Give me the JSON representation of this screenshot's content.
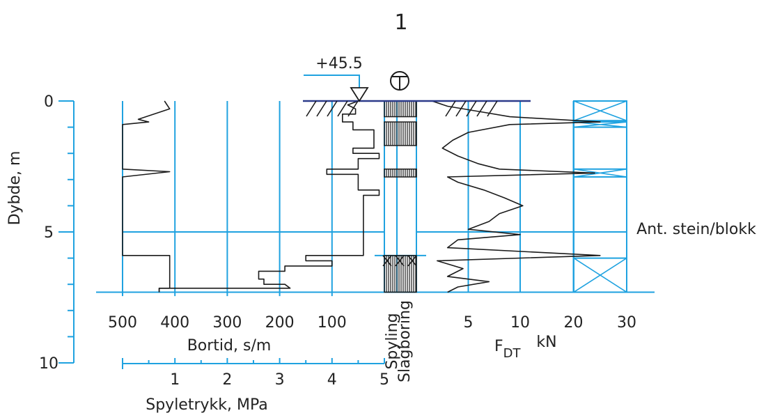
{
  "title": "1",
  "elevation_label": "+45.5",
  "right_label": "Ant. stein/blokk",
  "colors": {
    "grid": "#1fa2e0",
    "curve": "#1b1b1b"
  },
  "chart_data": {
    "type": "line",
    "depth_axis": {
      "label": "Dybde, m",
      "ticks": [
        {
          "value": 0,
          "label": "0"
        },
        {
          "value": 5,
          "label": "5"
        },
        {
          "value": 10,
          "label": "10"
        }
      ],
      "ylim": [
        0,
        10
      ],
      "inverted": true,
      "terminated_at": 7.3
    },
    "bortid": {
      "label": "Bortid, s/m",
      "ticks": [
        "500",
        "400",
        "300",
        "200",
        "100"
      ],
      "tick_values": [
        500,
        400,
        300,
        200,
        100
      ],
      "xlim": [
        500,
        0
      ],
      "profile": [
        {
          "depth": 0.0,
          "value": 50
        },
        {
          "depth": 0.15,
          "value": 70
        },
        {
          "depth": 0.3,
          "value": 55
        },
        {
          "depth": 0.5,
          "value": 55
        },
        {
          "depth": 0.5,
          "value": 80
        },
        {
          "depth": 0.8,
          "value": 80
        },
        {
          "depth": 0.8,
          "value": 60
        },
        {
          "depth": 1.1,
          "value": 60
        },
        {
          "depth": 1.1,
          "value": 20
        },
        {
          "depth": 1.8,
          "value": 20
        },
        {
          "depth": 1.8,
          "value": 60
        },
        {
          "depth": 2.0,
          "value": 60
        },
        {
          "depth": 2.0,
          "value": 10
        },
        {
          "depth": 2.2,
          "value": 10
        },
        {
          "depth": 2.2,
          "value": 50
        },
        {
          "depth": 2.6,
          "value": 50
        },
        {
          "depth": 2.6,
          "value": 110
        },
        {
          "depth": 2.8,
          "value": 110
        },
        {
          "depth": 2.8,
          "value": 50
        },
        {
          "depth": 3.4,
          "value": 50
        },
        {
          "depth": 3.4,
          "value": 10
        },
        {
          "depth": 3.6,
          "value": 10
        },
        {
          "depth": 3.6,
          "value": 40
        },
        {
          "depth": 5.9,
          "value": 40
        },
        {
          "depth": 5.9,
          "value": 150
        },
        {
          "depth": 6.1,
          "value": 150
        },
        {
          "depth": 6.1,
          "value": 100
        },
        {
          "depth": 6.3,
          "value": 100
        },
        {
          "depth": 6.3,
          "value": 190
        },
        {
          "depth": 6.5,
          "value": 190
        },
        {
          "depth": 6.5,
          "value": 240
        },
        {
          "depth": 6.8,
          "value": 240
        },
        {
          "depth": 6.8,
          "value": 230
        },
        {
          "depth": 7.0,
          "value": 230
        },
        {
          "depth": 7.0,
          "value": 190
        },
        {
          "depth": 7.15,
          "value": 180
        },
        {
          "depth": 7.15,
          "value": 430
        },
        {
          "depth": 7.3,
          "value": 430
        }
      ]
    },
    "spyletrykk": {
      "label": "Spyletrykk, MPa",
      "ticks": [
        "1",
        "2",
        "3",
        "4",
        "5"
      ],
      "tick_values": [
        1,
        2,
        3,
        4,
        5
      ],
      "xlim": [
        0,
        5
      ],
      "profile": [
        {
          "depth": 0.0,
          "value": 0.8
        },
        {
          "depth": 0.3,
          "value": 0.9
        },
        {
          "depth": 0.7,
          "value": 0.3
        },
        {
          "depth": 0.8,
          "value": 0.5
        },
        {
          "depth": 0.9,
          "value": 0.0
        },
        {
          "depth": 1.7,
          "value": 0.0
        },
        {
          "depth": 2.6,
          "value": 0.0
        },
        {
          "depth": 2.7,
          "value": 0.9
        },
        {
          "depth": 2.9,
          "value": 0.0
        },
        {
          "depth": 5.9,
          "value": 0.0
        },
        {
          "depth": 5.9,
          "value": 0.9
        },
        {
          "depth": 7.15,
          "value": 0.9
        },
        {
          "depth": 7.15,
          "value": 0.7
        },
        {
          "depth": 7.3,
          "value": 0.7
        }
      ]
    },
    "metode": {
      "labels": [
        "Spyling",
        "Slagboring"
      ],
      "hatched_intervals": [
        {
          "from": 0.0,
          "to": 0.6
        },
        {
          "from": 0.8,
          "to": 1.7
        },
        {
          "from": 2.6,
          "to": 2.9
        },
        {
          "from": 5.9,
          "to": 7.3
        }
      ]
    },
    "fdt": {
      "label_main": "F",
      "label_sub": "DT",
      "unit": "kN",
      "ticks": [
        "5",
        "10",
        "20",
        "30"
      ],
      "tick_values": [
        5,
        10,
        20,
        30
      ],
      "segments": [
        {
          "from": 0,
          "to": 10
        },
        {
          "from": 10,
          "to": 30
        }
      ],
      "profile": [
        {
          "depth": 0.0,
          "value": 1.5
        },
        {
          "depth": 0.2,
          "value": 3.0
        },
        {
          "depth": 0.4,
          "value": 6.0
        },
        {
          "depth": 0.6,
          "value": 9.0
        },
        {
          "depth": 0.8,
          "value": 25
        },
        {
          "depth": 0.9,
          "value": 9.0
        },
        {
          "depth": 1.2,
          "value": 5.0
        },
        {
          "depth": 1.5,
          "value": 3.5
        },
        {
          "depth": 1.8,
          "value": 2.5
        },
        {
          "depth": 2.1,
          "value": 4.0
        },
        {
          "depth": 2.4,
          "value": 6.0
        },
        {
          "depth": 2.6,
          "value": 8.0
        },
        {
          "depth": 2.75,
          "value": 24
        },
        {
          "depth": 2.9,
          "value": 3.0
        },
        {
          "depth": 3.1,
          "value": 4.0
        },
        {
          "depth": 3.4,
          "value": 6.5
        },
        {
          "depth": 3.7,
          "value": 8.5
        },
        {
          "depth": 4.0,
          "value": 10.5
        },
        {
          "depth": 4.3,
          "value": 8.0
        },
        {
          "depth": 4.6,
          "value": 7.0
        },
        {
          "depth": 4.9,
          "value": 5.0
        },
        {
          "depth": 5.1,
          "value": 10.0
        },
        {
          "depth": 5.3,
          "value": 4.0
        },
        {
          "depth": 5.6,
          "value": 3.0
        },
        {
          "depth": 5.9,
          "value": 25
        },
        {
          "depth": 6.1,
          "value": 2.0
        },
        {
          "depth": 6.4,
          "value": 4.5
        },
        {
          "depth": 6.7,
          "value": 3.0
        },
        {
          "depth": 6.9,
          "value": 7.0
        },
        {
          "depth": 7.1,
          "value": 4.0
        },
        {
          "depth": 7.3,
          "value": 3.0
        }
      ]
    },
    "stein_blokk_intervals": [
      {
        "from": 0.0,
        "to": 0.75
      },
      {
        "from": 0.8,
        "to": 1.0
      },
      {
        "from": 2.6,
        "to": 2.9
      },
      {
        "from": 6.0,
        "to": 7.3
      }
    ],
    "ground_surface_depth": 0,
    "grid": true
  }
}
